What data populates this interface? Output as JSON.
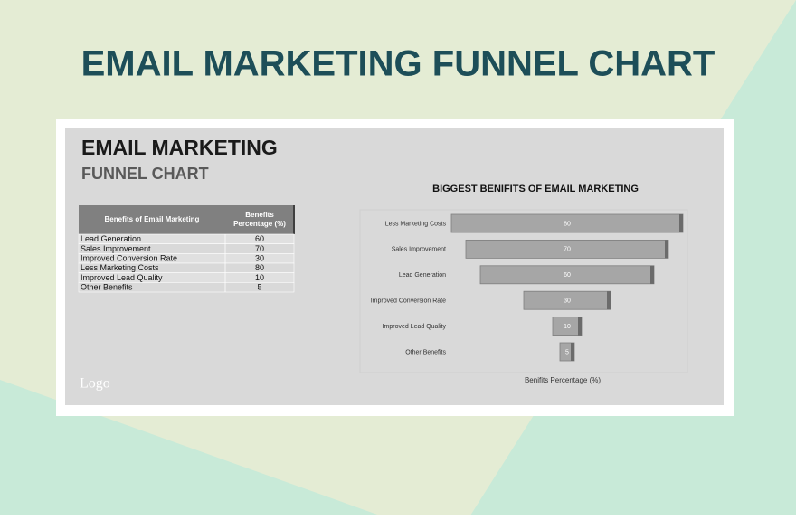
{
  "page_title": "EMAIL MARKETING FUNNEL CHART",
  "sheet": {
    "title": "EMAIL MARKETING",
    "subtitle": "FUNNEL CHART",
    "logo": "Logo"
  },
  "table": {
    "headers": [
      "Benefits of Email Marketing",
      "Benefits Percentage (%)"
    ],
    "rows": [
      [
        "Lead Generation",
        60
      ],
      [
        "Sales Improvement",
        70
      ],
      [
        "Improved Conversion Rate",
        30
      ],
      [
        "Less Marketing Costs",
        80
      ],
      [
        "Improved Lead Quality",
        10
      ],
      [
        "Other Benefits",
        5
      ]
    ]
  },
  "chart_data": {
    "type": "funnel",
    "title": "BIGGEST BENIFITS OF EMAIL MARKETING",
    "x_label": "Benifits Percentage (%)",
    "categories": [
      "Less Marketing Costs",
      "Sales Improvement",
      "Lead Generation",
      "Improved Conversion Rate",
      "Improved Lead Quality",
      "Other Benefits"
    ],
    "values": [
      80,
      70,
      60,
      30,
      10,
      5
    ],
    "color": "#a6a6a6"
  }
}
